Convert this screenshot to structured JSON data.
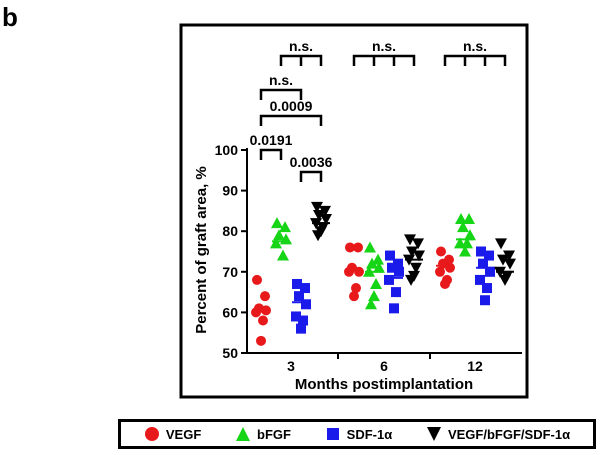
{
  "panel_label": "b",
  "chart_data": {
    "type": "scatter",
    "ylabel": "Percent of graft area, %",
    "xlabel": "Months postimplantation",
    "categories": [
      "3",
      "6",
      "12"
    ],
    "ylim": [
      50,
      100
    ],
    "yticks": [
      50,
      60,
      70,
      80,
      90,
      100
    ],
    "grid": false,
    "legend_position": "bottom",
    "series": [
      {
        "name": "VEGF",
        "marker": "circle",
        "color": "#e8191b",
        "values": [
          [
            68,
            64,
            61,
            60.5,
            60,
            58,
            53
          ],
          [
            76,
            76,
            71,
            70,
            70,
            66,
            64
          ],
          [
            75,
            73,
            72,
            71,
            70,
            68,
            67
          ]
        ],
        "means": [
          60.5,
          70.5,
          71.5
        ]
      },
      {
        "name": "bFGF",
        "marker": "triangle-up",
        "color": "#16d516",
        "values": [
          [
            82,
            81,
            79,
            78,
            77,
            74
          ],
          [
            76,
            73,
            72,
            71,
            70,
            67,
            64,
            62
          ],
          [
            83,
            83,
            81,
            79,
            77,
            77,
            75
          ]
        ],
        "means": [
          77.5,
          70,
          78
        ]
      },
      {
        "name": "SDF-1α",
        "marker": "square",
        "color": "#1a1aeb",
        "values": [
          [
            67,
            66,
            64,
            62,
            59,
            58,
            56
          ],
          [
            74,
            72,
            71,
            70,
            68,
            65,
            61
          ],
          [
            75,
            74,
            72,
            70,
            68,
            66,
            63
          ]
        ],
        "means": [
          62.5,
          68.5,
          71
        ]
      },
      {
        "name": "VEGF/bFGF/SDF-1α",
        "marker": "triangle-down",
        "color": "#000000",
        "values": [
          [
            86,
            85,
            84,
            83,
            82,
            81,
            80,
            79
          ],
          [
            78,
            77,
            75,
            74,
            73,
            71,
            69,
            68
          ],
          [
            77,
            74,
            73,
            72,
            70,
            69,
            68
          ]
        ],
        "means": [
          82,
          73,
          70
        ]
      }
    ],
    "annotations": [
      {
        "text": "0.0191",
        "group": "3",
        "from": 0,
        "to": 1,
        "level": 1
      },
      {
        "text": "0.0036",
        "group": "3",
        "from": 2,
        "to": 3,
        "level": 0
      },
      {
        "text": "0.0009",
        "group": "3",
        "from": 0,
        "to": 3,
        "level": 2
      },
      {
        "text": "n.s.",
        "group": "3",
        "from": 0,
        "to": 2,
        "level": 3
      },
      {
        "text": "n.s.",
        "group": "3",
        "from": 1,
        "to": 3,
        "level": 4
      },
      {
        "text": "n.s.",
        "group": "6",
        "from": 0,
        "to": 3,
        "level": 4
      },
      {
        "text": "n.s.",
        "group": "12",
        "from": 0,
        "to": 3,
        "level": 4
      }
    ]
  }
}
